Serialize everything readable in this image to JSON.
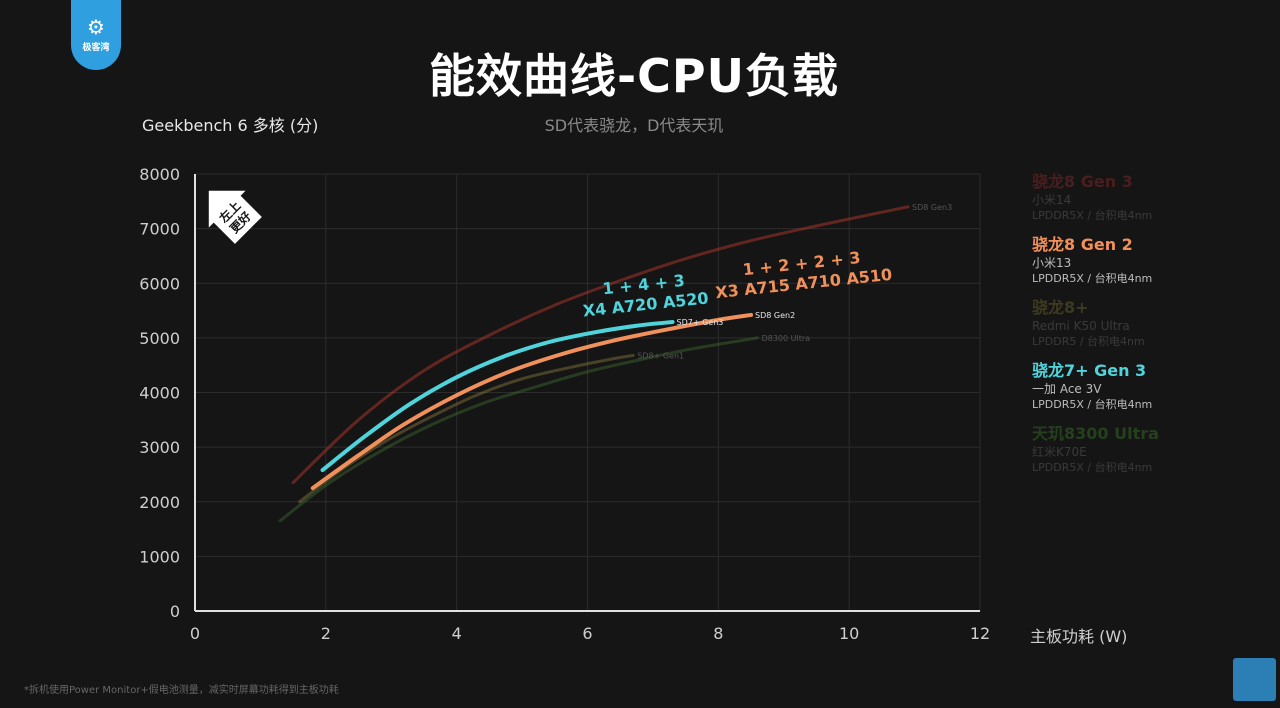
{
  "logo": {
    "text": "极客湾",
    "icon": "gear-monitor-icon"
  },
  "title": "能效曲线-CPU负载",
  "subtitle": "SD代表骁龙，D代表天玑",
  "footnote": "*拆机使用Power Monitor+假电池测量，减实时屏幕功耗得到主板功耗",
  "badge": {
    "line1": "左上",
    "line2": "更好"
  },
  "chart_data": {
    "type": "line",
    "ylabel": "Geekbench 6 多核 (分)",
    "xlabel": "主板功耗 (W)",
    "xlim": [
      0,
      12
    ],
    "ylim": [
      0,
      8000
    ],
    "xticks": [
      "0",
      "2",
      "4",
      "6",
      "8",
      "10",
      "12"
    ],
    "yticks": [
      "0",
      "1000",
      "2000",
      "3000",
      "4000",
      "5000",
      "6000",
      "7000",
      "8000"
    ],
    "grid": true,
    "legend_position": "right",
    "series": [
      {
        "name": "骁龙8 Gen 3",
        "label": "SD8 Gen3",
        "color": "#c0392b",
        "dim": true,
        "x": [
          1.5,
          2.5,
          3.5,
          4.5,
          5.5,
          6.5,
          7.5,
          8.5,
          9.5,
          10.9
        ],
        "y": [
          2350,
          3500,
          4400,
          5050,
          5600,
          6050,
          6450,
          6780,
          7050,
          7400
        ]
      },
      {
        "name": "骁龙8 Gen 2",
        "label": "SD8 Gen2",
        "color": "#f0905a",
        "dim": false,
        "x": [
          1.8,
          2.5,
          3.2,
          4.0,
          4.8,
          5.6,
          6.4,
          7.2,
          8.0,
          8.5
        ],
        "y": [
          2250,
          2850,
          3420,
          3950,
          4380,
          4700,
          4950,
          5150,
          5330,
          5420
        ]
      },
      {
        "name": "骁龙8+",
        "label": "SD8+ Gen1",
        "color": "#8a7a3a",
        "dim": true,
        "x": [
          1.6,
          2.2,
          2.9,
          3.6,
          4.3,
          5.0,
          5.7,
          6.4,
          6.7
        ],
        "y": [
          2000,
          2550,
          3100,
          3550,
          3950,
          4250,
          4450,
          4620,
          4680
        ]
      },
      {
        "name": "骁龙7+ Gen 3",
        "label": "SD7+ Gen3",
        "color": "#4fd4dc",
        "dim": false,
        "x": [
          1.95,
          2.6,
          3.3,
          4.0,
          4.7,
          5.4,
          6.1,
          6.8,
          7.3
        ],
        "y": [
          2580,
          3200,
          3800,
          4280,
          4650,
          4920,
          5100,
          5230,
          5290
        ]
      },
      {
        "name": "天玑8300 Ultra",
        "label": "D8300 Ultra",
        "color": "#3d6b2e",
        "dim": true,
        "x": [
          1.3,
          2.0,
          2.8,
          3.6,
          4.4,
          5.2,
          6.0,
          6.8,
          7.6,
          8.6
        ],
        "y": [
          1650,
          2300,
          2900,
          3400,
          3800,
          4100,
          4380,
          4600,
          4800,
          5000
        ]
      }
    ],
    "annotations": [
      {
        "series": "骁龙7+ Gen 3",
        "line1": "1 + 4 + 3",
        "line2": "X4 A720 A520"
      },
      {
        "series": "骁龙8 Gen 2",
        "line1": "1 + 2 + 2 + 3",
        "line2": "X3 A715 A710 A510"
      }
    ]
  },
  "legend": [
    {
      "name": "骁龙8 Gen 3",
      "phone": "小米14",
      "mem": "LPDDR5X / 台积电4nm",
      "color": "#4a1e1e",
      "dim": true
    },
    {
      "name": "骁龙8 Gen 2",
      "phone": "小米13",
      "mem": "LPDDR5X / 台积电4nm",
      "color": "#f0905a",
      "dim": false
    },
    {
      "name": "骁龙8+",
      "phone": "Redmi K50 Ultra",
      "mem": "LPDDR5 / 台积电4nm",
      "color": "#3e3a1e",
      "dim": true
    },
    {
      "name": "骁龙7+ Gen 3",
      "phone": "一加 Ace 3V",
      "mem": "LPDDR5X / 台积电4nm",
      "color": "#4fd4dc",
      "dim": false
    },
    {
      "name": "天玑8300 Ultra",
      "phone": "红米K70E",
      "mem": "LPDDR5X / 台积电4nm",
      "color": "#24401c",
      "dim": true
    }
  ]
}
